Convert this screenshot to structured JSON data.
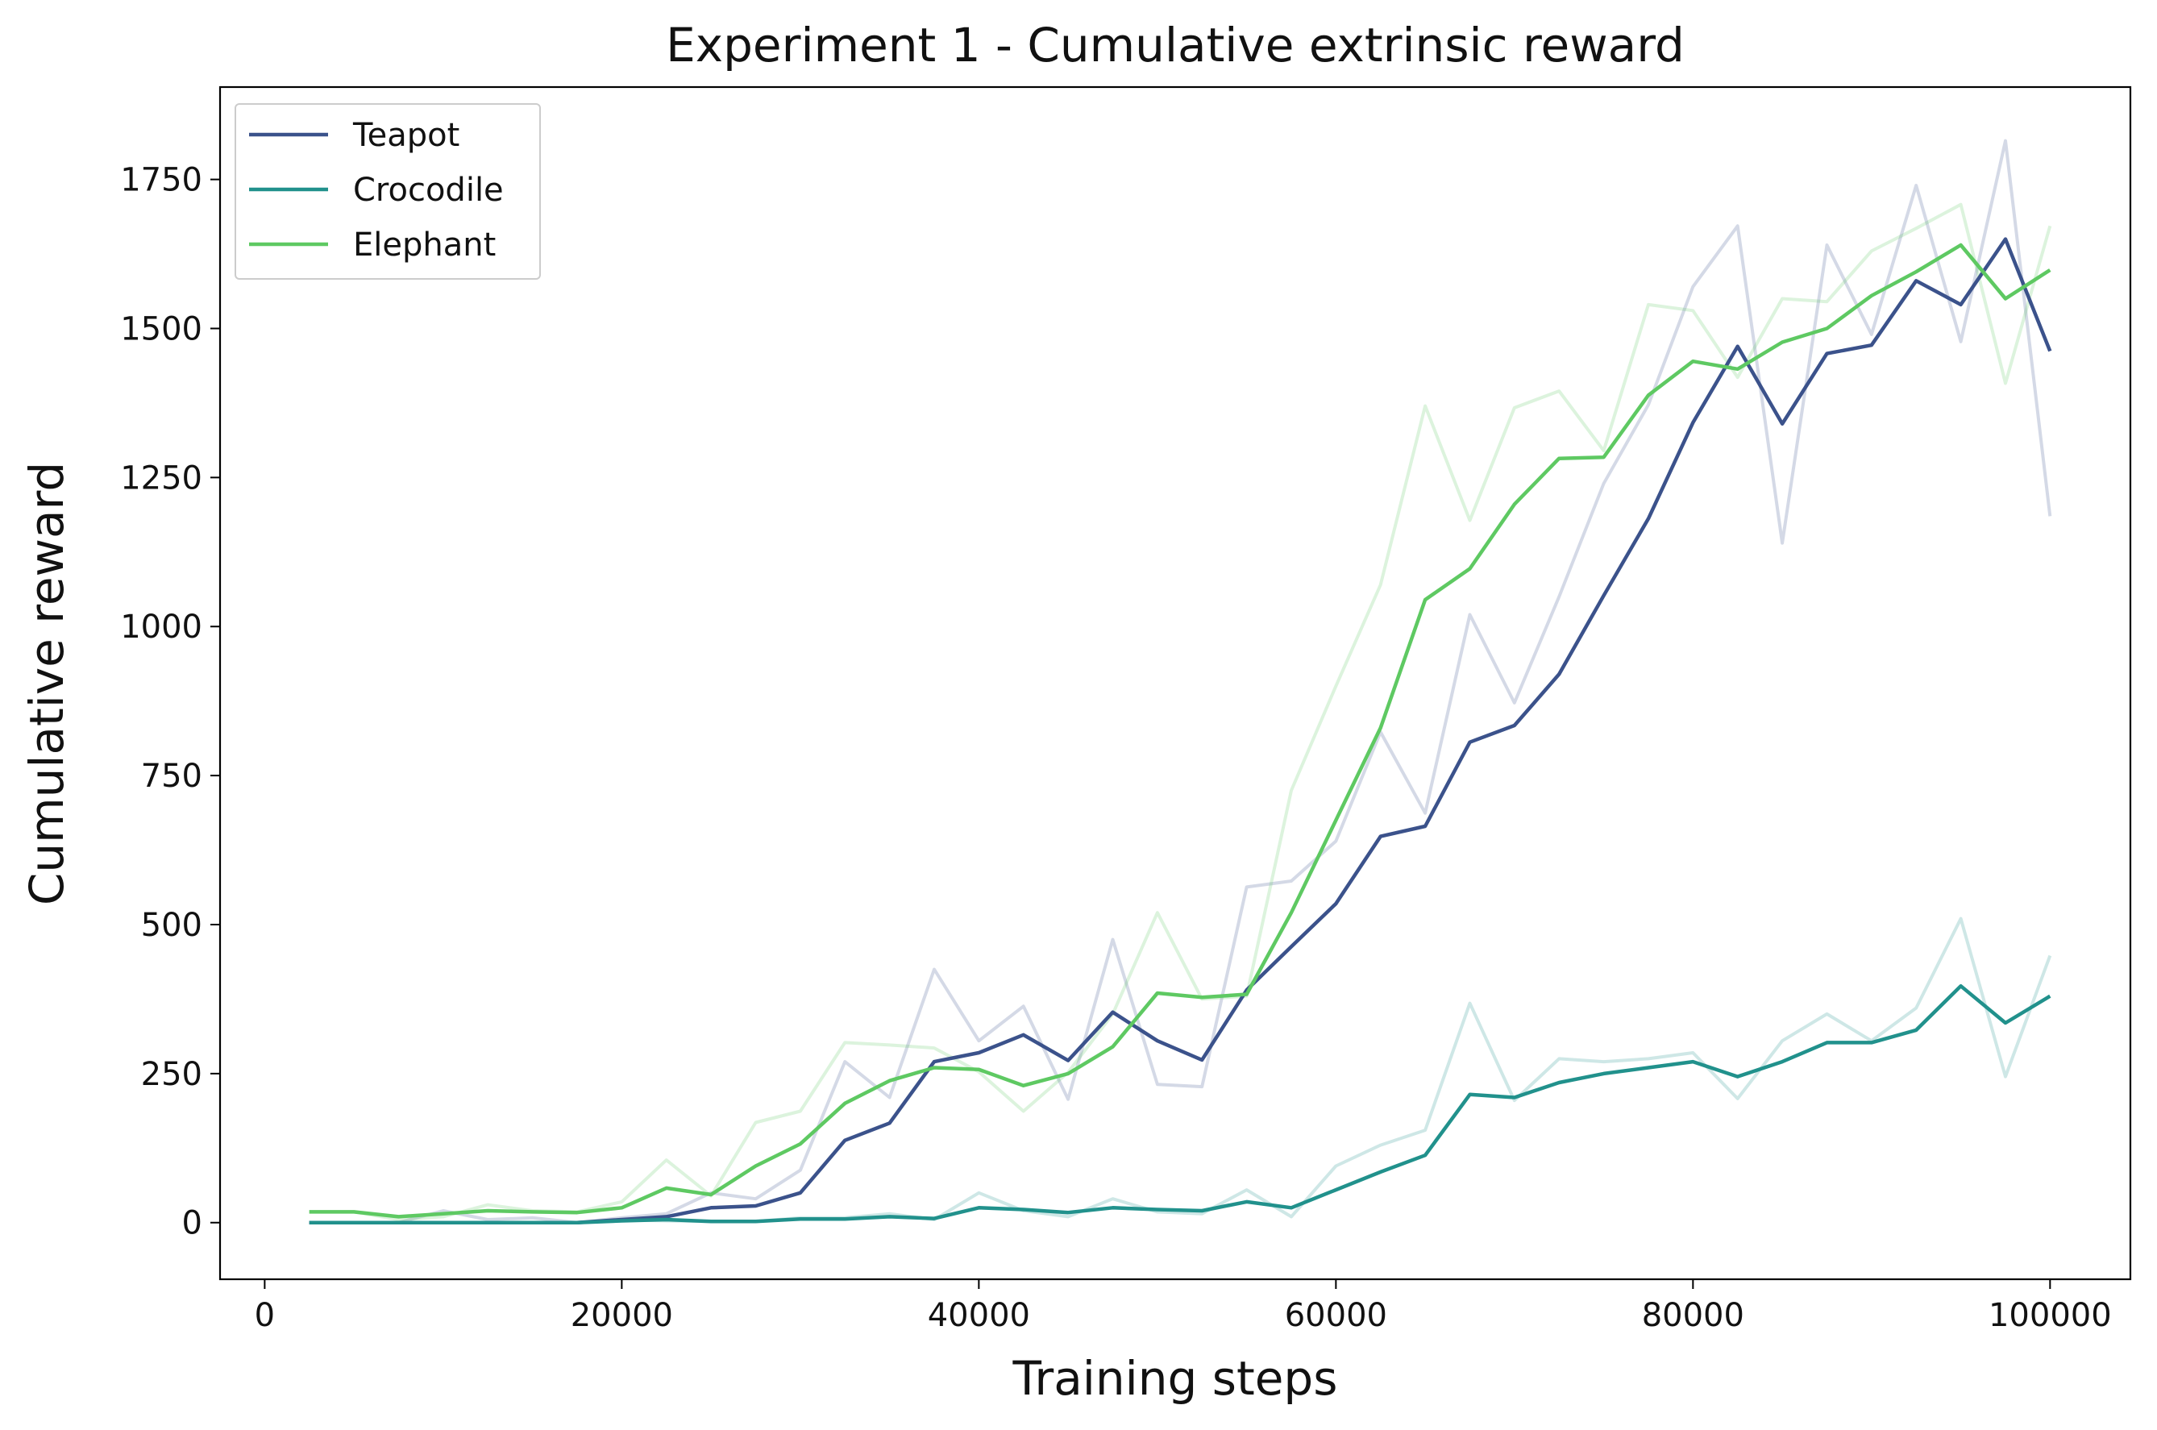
{
  "chart_data": {
    "type": "line",
    "title": "Experiment 1 - Cumulative extrinsic reward",
    "xlabel": "Training steps",
    "ylabel": "Cumulative reward",
    "xlim": [
      -2500,
      104500
    ],
    "ylim": [
      -95,
      1905
    ],
    "xticks": [
      0,
      20000,
      40000,
      60000,
      80000,
      100000
    ],
    "xtick_labels": [
      "0",
      "20000",
      "40000",
      "60000",
      "80000",
      "100000"
    ],
    "yticks": [
      0,
      250,
      500,
      750,
      1000,
      1250,
      1500,
      1750
    ],
    "ytick_labels": [
      "0",
      "250",
      "500",
      "750",
      "1000",
      "1250",
      "1500",
      "1750"
    ],
    "grid": false,
    "legend_position": "top-left",
    "x": [
      2500,
      5000,
      7500,
      10000,
      12500,
      15000,
      17500,
      20000,
      22500,
      25000,
      27500,
      30000,
      32500,
      35000,
      37500,
      40000,
      42500,
      45000,
      47500,
      50000,
      52500,
      55000,
      57500,
      60000,
      62500,
      65000,
      67500,
      70000,
      72500,
      75000,
      77500,
      80000,
      82500,
      85000,
      87500,
      90000,
      92500,
      95000,
      97500,
      100000
    ],
    "series": [
      {
        "name": "Teapot",
        "color": "#3b528b",
        "smoothed": [
          0,
          0,
          0,
          0,
          0,
          0,
          0,
          5,
          10,
          25,
          28,
          50,
          138,
          167,
          270,
          285,
          315,
          272,
          353,
          305,
          273,
          390,
          463,
          535,
          648,
          665,
          806,
          834,
          920,
          1052,
          1181,
          1342,
          1470,
          1340,
          1458,
          1472,
          1580,
          1540,
          1650,
          1462
        ],
        "raw": [
          0,
          0,
          0,
          20,
          5,
          8,
          0,
          8,
          15,
          50,
          40,
          88,
          270,
          210,
          425,
          305,
          363,
          207,
          475,
          232,
          228,
          563,
          573,
          640,
          823,
          687,
          1020,
          872,
          1050,
          1240,
          1372,
          1570,
          1672,
          1140,
          1640,
          1490,
          1740,
          1478,
          1815,
          1185
        ]
      },
      {
        "name": "Crocodile",
        "color": "#21918c",
        "smoothed": [
          0,
          0,
          0,
          0,
          0,
          0,
          0,
          3,
          5,
          2,
          2,
          6,
          6,
          10,
          7,
          25,
          22,
          17,
          25,
          22,
          20,
          35,
          25,
          55,
          85,
          113,
          215,
          210,
          235,
          250,
          260,
          270,
          245,
          270,
          302,
          302,
          323,
          397,
          335,
          380
        ],
        "raw": [
          0,
          0,
          0,
          0,
          0,
          0,
          0,
          5,
          3,
          2,
          2,
          8,
          8,
          15,
          5,
          50,
          20,
          10,
          40,
          18,
          15,
          55,
          10,
          95,
          130,
          155,
          368,
          205,
          275,
          270,
          275,
          285,
          208,
          305,
          350,
          305,
          360,
          510,
          245,
          448
        ]
      },
      {
        "name": "Elephant",
        "color": "#5ec962",
        "smoothed": [
          18,
          18,
          10,
          15,
          20,
          18,
          17,
          25,
          58,
          47,
          95,
          132,
          200,
          238,
          260,
          257,
          230,
          250,
          295,
          385,
          378,
          383,
          520,
          675,
          830,
          1045,
          1097,
          1205,
          1282,
          1284,
          1388,
          1445,
          1432,
          1477,
          1500,
          1555,
          1595,
          1640,
          1550,
          1598
        ],
        "raw": [
          18,
          18,
          5,
          10,
          30,
          20,
          18,
          35,
          105,
          45,
          168,
          187,
          302,
          298,
          293,
          253,
          187,
          252,
          350,
          520,
          375,
          380,
          725,
          900,
          1070,
          1370,
          1178,
          1367,
          1395,
          1295,
          1540,
          1530,
          1418,
          1550,
          1545,
          1630,
          1668,
          1708,
          1408,
          1672
        ]
      }
    ]
  }
}
